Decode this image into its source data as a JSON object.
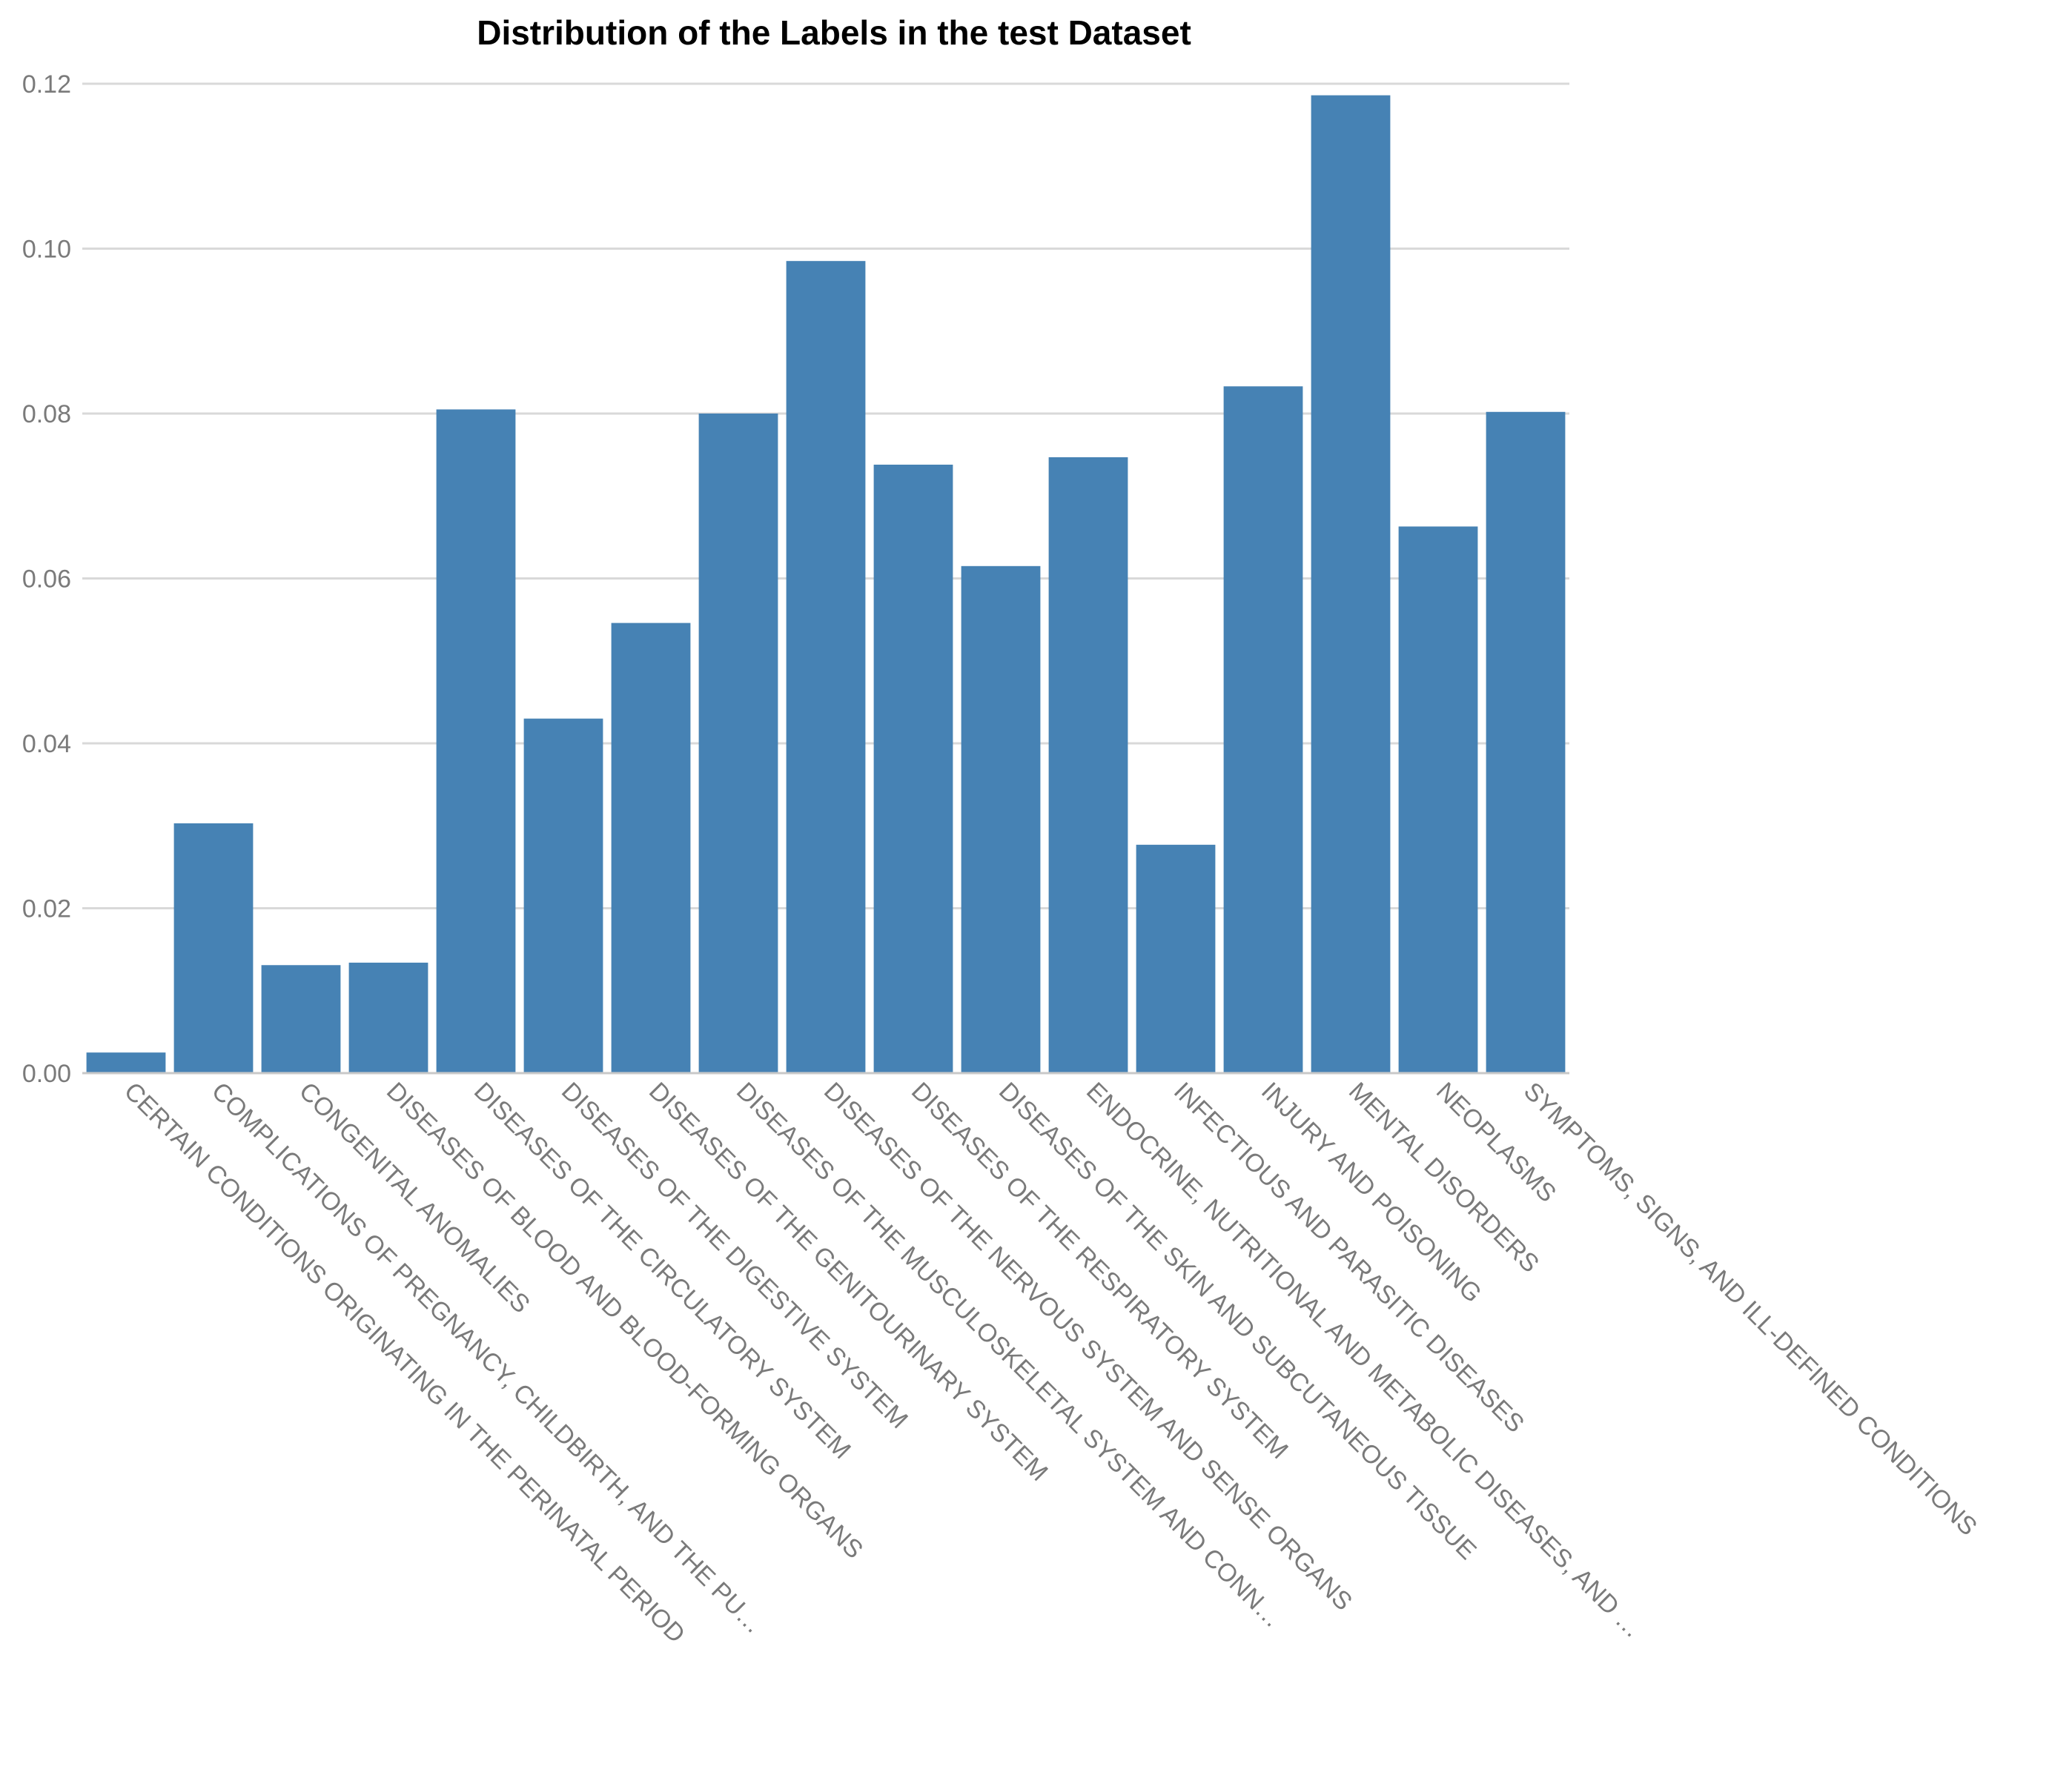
{
  "chart_data": {
    "type": "bar",
    "title": "Distribution of the Labels in the test Dataset",
    "xlabel": "",
    "ylabel": "",
    "ylim": [
      0,
      0.12
    ],
    "yticks": [
      "0.00",
      "0.02",
      "0.04",
      "0.06",
      "0.08",
      "0.10",
      "0.12"
    ],
    "grid": true,
    "bar_color": "#4682b4",
    "categories": [
      "CERTAIN CONDITIONS ORIGINATING IN THE PERINATAL PERIOD",
      "COMPLICATIONS OF PREGNANCY, CHILDBIRTH, AND THE PU…",
      "CONGENITAL ANOMALIES",
      "DISEASES OF BLOOD AND BLOOD-FORMING ORGANS",
      "DISEASES OF THE CIRCULATORY SYSTEM",
      "DISEASES OF THE DIGESTIVE SYSTEM",
      "DISEASES OF THE GENITOURINARY SYSTEM",
      "DISEASES OF THE MUSCULOSKELETAL SYSTEM AND CONN…",
      "DISEASES OF THE NERVOUS SYSTEM AND SENSE ORGANS",
      "DISEASES OF THE RESPIRATORY SYSTEM",
      "DISEASES OF THE SKIN AND SUBCUTANEOUS TISSUE",
      "ENDOCRINE, NUTRITIONAL AND METABOLIC DISEASES, AND …",
      "INFECTIOUS AND PARASITIC DISEASES",
      "INJURY AND POISONING",
      "MENTAL DISORDERS",
      "NEOPLASMS",
      "SYMPTOMS, SIGNS, AND ILL-DEFINED CONDITIONS"
    ],
    "values": [
      0.0025,
      0.0303,
      0.0131,
      0.0134,
      0.0805,
      0.043,
      0.0546,
      0.08,
      0.0985,
      0.0738,
      0.0615,
      0.0747,
      0.0277,
      0.0833,
      0.1186,
      0.0663,
      0.0802
    ]
  }
}
